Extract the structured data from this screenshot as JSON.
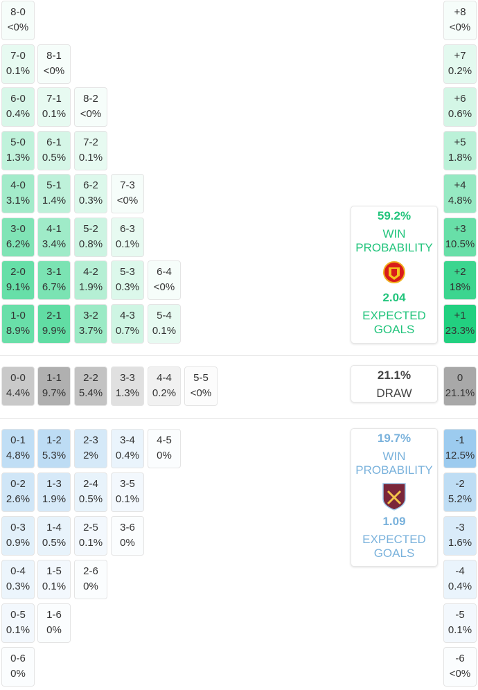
{
  "colors": {
    "home": "#22c47c",
    "away": "#7ab2dc",
    "draw_text": "#444444",
    "home_cell": "#22d080",
    "away_cell": "#9ccbef",
    "draw_cell": "#a8a8a8"
  },
  "home_rows": [
    [
      [
        "8-0",
        "<0%"
      ]
    ],
    [
      [
        "7-0",
        "0.1%"
      ],
      [
        "8-1",
        "<0%"
      ]
    ],
    [
      [
        "6-0",
        "0.4%"
      ],
      [
        "7-1",
        "0.1%"
      ],
      [
        "8-2",
        "<0%"
      ]
    ],
    [
      [
        "5-0",
        "1.3%"
      ],
      [
        "6-1",
        "0.5%"
      ],
      [
        "7-2",
        "0.1%"
      ]
    ],
    [
      [
        "4-0",
        "3.1%"
      ],
      [
        "5-1",
        "1.4%"
      ],
      [
        "6-2",
        "0.3%"
      ],
      [
        "7-3",
        "<0%"
      ]
    ],
    [
      [
        "3-0",
        "6.2%"
      ],
      [
        "4-1",
        "3.4%"
      ],
      [
        "5-2",
        "0.8%"
      ],
      [
        "6-3",
        "0.1%"
      ]
    ],
    [
      [
        "2-0",
        "9.1%"
      ],
      [
        "3-1",
        "6.7%"
      ],
      [
        "4-2",
        "1.9%"
      ],
      [
        "5-3",
        "0.3%"
      ],
      [
        "6-4",
        "<0%"
      ]
    ],
    [
      [
        "1-0",
        "8.9%"
      ],
      [
        "2-1",
        "9.9%"
      ],
      [
        "3-2",
        "3.7%"
      ],
      [
        "4-3",
        "0.7%"
      ],
      [
        "5-4",
        "0.1%"
      ]
    ]
  ],
  "home_margins": [
    [
      "+8",
      "<0%"
    ],
    [
      "+7",
      "0.2%"
    ],
    [
      "+6",
      "0.6%"
    ],
    [
      "+5",
      "1.8%"
    ],
    [
      "+4",
      "4.8%"
    ],
    [
      "+3",
      "10.5%"
    ],
    [
      "+2",
      "18%"
    ],
    [
      "+1",
      "23.3%"
    ]
  ],
  "draw_row": [
    [
      "0-0",
      "4.4%"
    ],
    [
      "1-1",
      "9.7%"
    ],
    [
      "2-2",
      "5.4%"
    ],
    [
      "3-3",
      "1.3%"
    ],
    [
      "4-4",
      "0.2%"
    ],
    [
      "5-5",
      "<0%"
    ]
  ],
  "draw_margin": [
    "0",
    "21.1%"
  ],
  "away_rows": [
    [
      [
        "0-1",
        "4.8%"
      ],
      [
        "1-2",
        "5.3%"
      ],
      [
        "2-3",
        "2%"
      ],
      [
        "3-4",
        "0.4%"
      ],
      [
        "4-5",
        "0%"
      ]
    ],
    [
      [
        "0-2",
        "2.6%"
      ],
      [
        "1-3",
        "1.9%"
      ],
      [
        "2-4",
        "0.5%"
      ],
      [
        "3-5",
        "0.1%"
      ]
    ],
    [
      [
        "0-3",
        "0.9%"
      ],
      [
        "1-4",
        "0.5%"
      ],
      [
        "2-5",
        "0.1%"
      ],
      [
        "3-6",
        "0%"
      ]
    ],
    [
      [
        "0-4",
        "0.3%"
      ],
      [
        "1-5",
        "0.1%"
      ],
      [
        "2-6",
        "0%"
      ]
    ],
    [
      [
        "0-5",
        "0.1%"
      ],
      [
        "1-6",
        "0%"
      ]
    ],
    [
      [
        "0-6",
        "0%"
      ]
    ]
  ],
  "away_margins": [
    [
      "-1",
      "12.5%"
    ],
    [
      "-2",
      "5.2%"
    ],
    [
      "-3",
      "1.6%"
    ],
    [
      "-4",
      "0.4%"
    ],
    [
      "-5",
      "0.1%"
    ],
    [
      "-6",
      "<0%"
    ]
  ],
  "home_card": {
    "win_pct": "59.2%",
    "win_label_1": "WIN",
    "win_label_2": "PROBABILITY",
    "xg": "2.04",
    "xg_label_1": "EXPECTED",
    "xg_label_2": "GOALS",
    "logo": "manchester-united-crest"
  },
  "draw_card": {
    "pct": "21.1%",
    "label": "DRAW"
  },
  "away_card": {
    "win_pct": "19.7%",
    "win_label_1": "WIN",
    "win_label_2": "PROBABILITY",
    "xg": "1.09",
    "xg_label_1": "EXPECTED",
    "xg_label_2": "GOALS",
    "logo": "west-ham-crest"
  }
}
